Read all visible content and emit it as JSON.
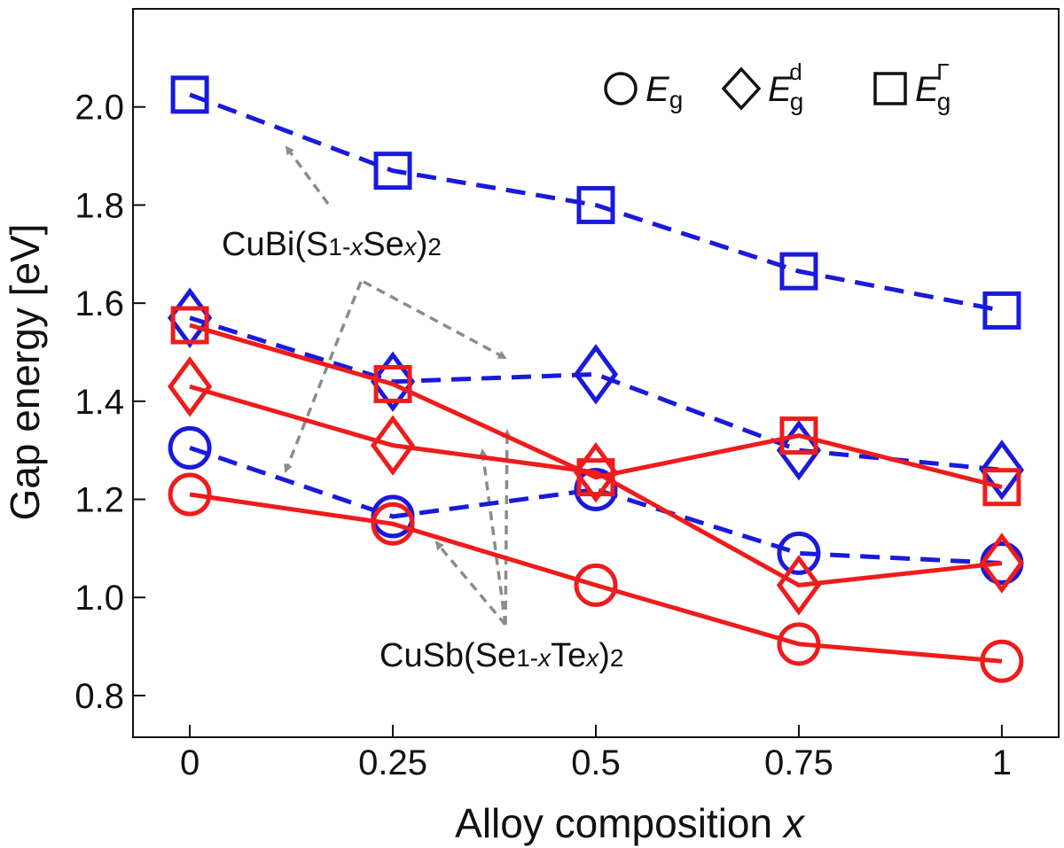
{
  "chart_data": {
    "type": "line",
    "xlabel_main": "Alloy composition ",
    "xlabel_var": "x",
    "ylabel": "Gap energy [eV]",
    "xlim": [
      -0.07,
      1.07
    ],
    "ylim": [
      0.715,
      2.2
    ],
    "x_ticks": [
      0,
      0.25,
      0.5,
      0.75,
      1
    ],
    "x_tick_labels": [
      "0",
      "0.25",
      "0.5",
      "0.75",
      "1"
    ],
    "y_ticks": [
      0.8,
      1.0,
      1.2,
      1.4,
      1.6,
      1.8,
      2.0
    ],
    "y_tick_labels": [
      "0.8",
      "1.0",
      "1.2",
      "1.4",
      "1.6",
      "1.8",
      "2.0"
    ],
    "x": [
      0,
      0.25,
      0.5,
      0.75,
      1
    ],
    "grid": false,
    "legend": {
      "placement": "top-right",
      "entries": [
        {
          "marker": "circle",
          "base": "E",
          "sub": "g",
          "sup": ""
        },
        {
          "marker": "diamond",
          "base": "E",
          "sub": "g",
          "sup": "d"
        },
        {
          "marker": "square",
          "base": "E",
          "sub": "g",
          "sup": "Γ"
        }
      ]
    },
    "annotations": [
      {
        "id": "cubi",
        "parts": [
          "CuBi(S",
          "1-",
          "x",
          "Se",
          "x",
          ")",
          "2"
        ]
      },
      {
        "id": "cusb",
        "parts": [
          "CuSb(Se",
          "1-",
          "x",
          "Te",
          "x",
          ")",
          "2"
        ]
      }
    ],
    "colors": {
      "CuBi": "#1a1adb",
      "CuSb": "#ee1c1c",
      "arrow": "#8c8c8c",
      "axis": "#111111"
    },
    "series": [
      {
        "group": "CuBi",
        "marker": "square",
        "style": "dashed",
        "values": [
          2.025,
          1.87,
          1.8,
          1.665,
          1.585
        ]
      },
      {
        "group": "CuBi",
        "marker": "diamond",
        "style": "dashed",
        "values": [
          1.57,
          1.44,
          1.455,
          1.3,
          1.26
        ]
      },
      {
        "group": "CuBi",
        "marker": "circle",
        "style": "dashed",
        "values": [
          1.305,
          1.165,
          1.22,
          1.09,
          1.07
        ]
      },
      {
        "group": "CuSb",
        "marker": "square",
        "style": "solid",
        "values": [
          1.555,
          1.435,
          1.245,
          1.33,
          1.225
        ]
      },
      {
        "group": "CuSb",
        "marker": "diamond",
        "style": "solid",
        "values": [
          1.43,
          1.31,
          1.255,
          1.025,
          1.07
        ]
      },
      {
        "group": "CuSb",
        "marker": "circle",
        "style": "solid",
        "values": [
          1.21,
          1.15,
          1.025,
          0.905,
          0.87
        ]
      }
    ]
  }
}
